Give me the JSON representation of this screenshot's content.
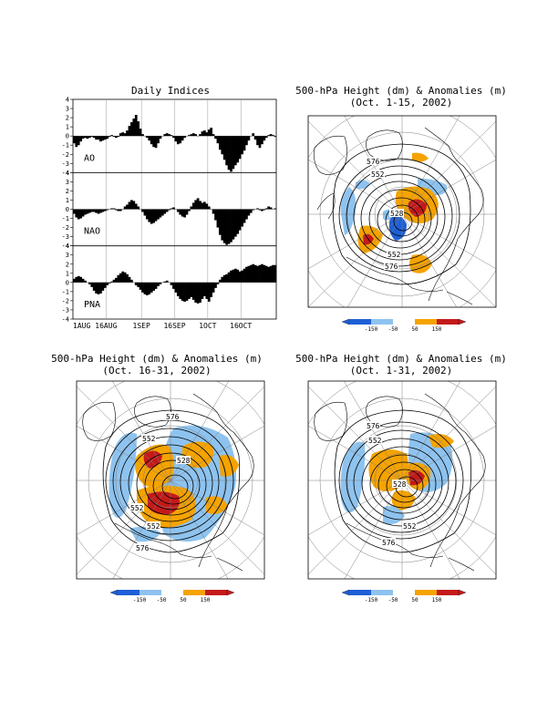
{
  "panels": {
    "indices_title": "Daily Indices",
    "map1_title": "500-hPa Height (dm) & Anomalies (m)",
    "map1_subtitle": "(Oct. 1-15, 2002)",
    "map2_title": "500-hPa Height (dm) & Anomalies (m)",
    "map2_subtitle": "(Oct. 16-31, 2002)",
    "map3_title": "500-hPa Height (dm) & Anomalies (m)",
    "map3_subtitle": "(Oct. 1-31, 2002)"
  },
  "contour_labels": {
    "map1": [
      "576",
      "552",
      "528",
      "552",
      "576"
    ],
    "map2": [
      "576",
      "552",
      "528",
      "552",
      "552",
      "576"
    ],
    "map3": [
      "576",
      "552",
      "528",
      "552",
      "576"
    ]
  },
  "colorbar": {
    "labels": [
      "-150",
      "-50",
      "50",
      "150"
    ],
    "colors": [
      "#1e5fd6",
      "#8ec3ef",
      "#ffffff",
      "#f5a300",
      "#c41a1a"
    ]
  },
  "colors": {
    "negative_strong": "#1e5fd6",
    "negative_weak": "#8ec3ef",
    "positive_weak": "#f5a300",
    "positive_strong": "#c41a1a"
  },
  "chart_data": [
    {
      "type": "bar",
      "title": "Daily Indices",
      "x_tick_labels": [
        "1AUG",
        "16AUG",
        "1SEP",
        "16SEP",
        "1OCT",
        "16OCT"
      ],
      "ylim": [
        -4,
        4
      ],
      "yticks": [
        4,
        3,
        2,
        1,
        0,
        -1,
        -2,
        -3,
        -4
      ],
      "series": [
        {
          "name": "AO",
          "values": [
            -0.8,
            -1.2,
            -1.0,
            -0.6,
            -0.3,
            -0.2,
            -0.3,
            -0.2,
            -0.1,
            -0.2,
            -0.4,
            -0.4,
            -0.6,
            -0.5,
            -0.4,
            -0.3,
            -0.1,
            0.1,
            -0.1,
            -0.2,
            -0.1,
            0.3,
            0.4,
            0.3,
            0.6,
            1.1,
            1.5,
            1.9,
            2.3,
            1.6,
            0.8,
            0.2,
            0.0,
            -0.2,
            -0.5,
            -0.9,
            -1.2,
            -1.3,
            -0.8,
            -0.3,
            0.0,
            0.2,
            0.3,
            0.2,
            0.1,
            -0.2,
            -0.6,
            -0.9,
            -0.8,
            -0.5,
            -0.2,
            0.0,
            0.1,
            0.2,
            0.3,
            0.2,
            0.0,
            0.2,
            0.5,
            0.6,
            0.4,
            0.7,
            0.9,
            0.2,
            -0.3,
            -0.8,
            -1.5,
            -2.0,
            -2.6,
            -3.2,
            -3.7,
            -3.9,
            -3.6,
            -3.2,
            -2.9,
            -2.5,
            -2.0,
            -1.6,
            -1.0,
            -0.5,
            0.0,
            0.3,
            -0.4,
            -1.0,
            -1.3,
            -0.9,
            -0.5,
            -0.2,
            0.1,
            0.2,
            0.1,
            -0.1
          ]
        },
        {
          "name": "NAO",
          "values": [
            -0.5,
            -0.9,
            -1.1,
            -1.0,
            -0.8,
            -0.6,
            -0.5,
            -0.4,
            -0.3,
            -0.3,
            -0.4,
            -0.5,
            -0.4,
            -0.3,
            -0.2,
            -0.1,
            0.0,
            0.1,
            0.1,
            -0.1,
            -0.2,
            -0.2,
            0.0,
            0.3,
            0.5,
            0.8,
            1.0,
            0.9,
            0.6,
            0.3,
            0.0,
            -0.3,
            -0.7,
            -1.1,
            -1.4,
            -1.6,
            -1.5,
            -1.3,
            -1.1,
            -0.9,
            -0.7,
            -0.5,
            -0.3,
            -0.1,
            0.1,
            0.2,
            0.0,
            -0.3,
            -0.6,
            -0.8,
            -0.9,
            -0.6,
            -0.2,
            0.3,
            0.7,
            1.0,
            1.2,
            0.9,
            0.7,
            0.8,
            0.6,
            0.3,
            0.0,
            -0.5,
            -1.2,
            -2.0,
            -2.8,
            -3.4,
            -3.7,
            -3.9,
            -3.8,
            -3.6,
            -3.3,
            -3.0,
            -2.7,
            -2.3,
            -1.9,
            -1.5,
            -1.1,
            -0.7,
            -0.4,
            -0.1,
            0.0,
            0.1,
            -0.1,
            -0.2,
            -0.1,
            0.1,
            0.3,
            0.2,
            0.0,
            0.1
          ]
        },
        {
          "name": "PNA",
          "values": [
            0.4,
            0.6,
            0.7,
            0.6,
            0.4,
            0.2,
            0.0,
            -0.2,
            -0.5,
            -0.9,
            -1.2,
            -1.3,
            -1.2,
            -0.9,
            -0.6,
            -0.3,
            -0.1,
            0.1,
            0.3,
            0.5,
            0.8,
            1.0,
            1.2,
            1.1,
            0.9,
            0.6,
            0.3,
            0.0,
            -0.3,
            -0.5,
            -0.8,
            -1.1,
            -1.3,
            -1.4,
            -1.3,
            -1.1,
            -0.9,
            -0.7,
            -0.4,
            -0.2,
            0.0,
            0.1,
            0.2,
            0.0,
            -0.3,
            -0.7,
            -1.1,
            -1.5,
            -1.8,
            -2.0,
            -2.1,
            -2.0,
            -1.8,
            -1.6,
            -1.9,
            -2.2,
            -2.3,
            -2.2,
            -1.8,
            -1.5,
            -1.8,
            -2.1,
            -1.6,
            -1.1,
            -0.6,
            -0.2,
            0.3,
            0.6,
            0.8,
            0.9,
            1.1,
            1.3,
            1.4,
            1.5,
            1.4,
            1.2,
            1.3,
            1.5,
            1.7,
            1.8,
            1.9,
            2.0,
            1.9,
            1.8,
            1.9,
            2.0,
            1.9,
            1.8,
            1.7,
            1.8,
            1.9,
            1.9
          ]
        }
      ]
    }
  ]
}
